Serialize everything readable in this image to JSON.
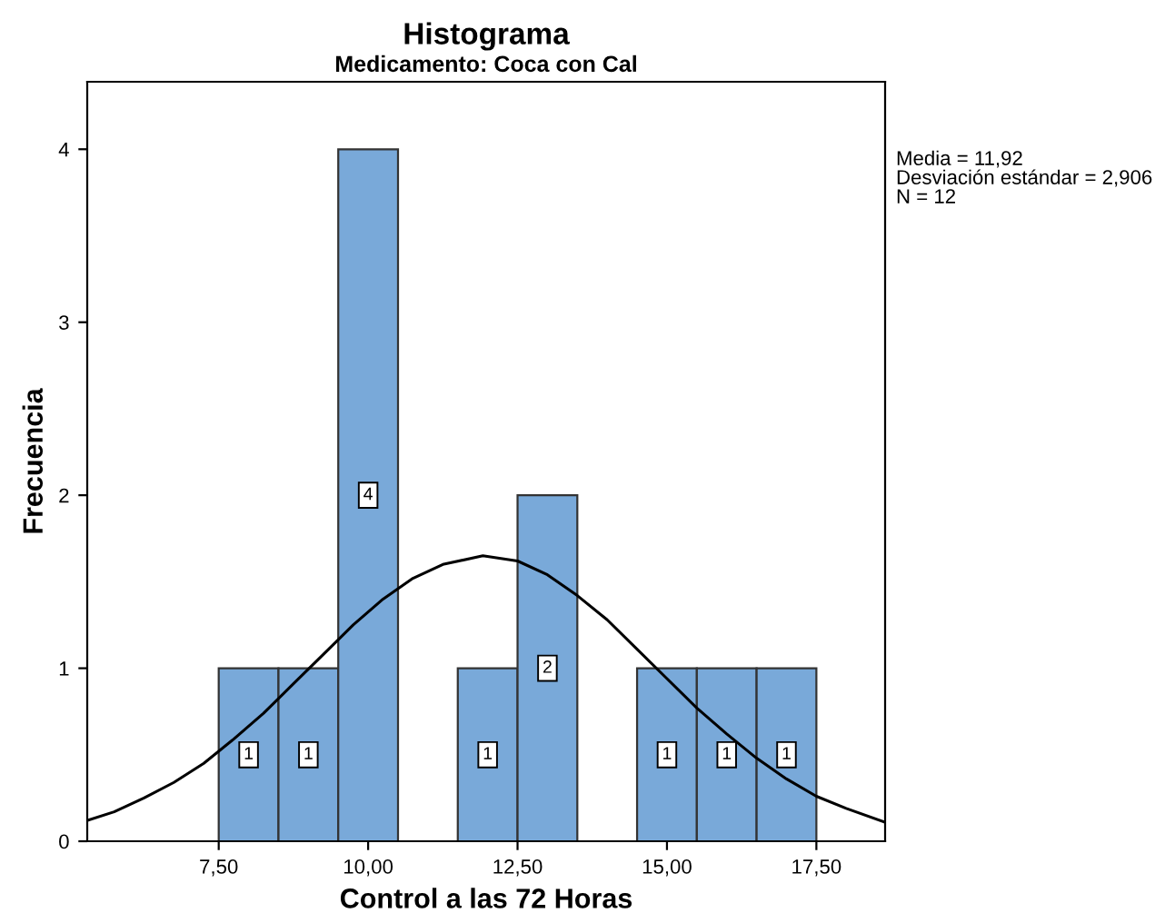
{
  "chart_data": {
    "type": "histogram",
    "title": "Histograma",
    "subtitle": "Medicamento: Coca con Cal",
    "xlabel": "Control a las 72 Horas",
    "ylabel": "Frecuencia",
    "bins": [
      7.5,
      8.5,
      9.5,
      10.5,
      11.5,
      12.5,
      13.5,
      14.5,
      15.5,
      16.5,
      17.5
    ],
    "values": [
      1,
      1,
      4,
      0,
      1,
      2,
      0,
      1,
      1,
      1
    ],
    "value_labels": [
      "1",
      "1",
      "4",
      null,
      "1",
      "2",
      null,
      "1",
      "1",
      "1"
    ],
    "color": "#79a9d9",
    "series": [
      {
        "type": "line",
        "color": "#000000",
        "x": [
          5.3,
          5.75,
          6.25,
          6.75,
          7.25,
          7.75,
          8.25,
          8.75,
          9.25,
          9.75,
          10.25,
          10.75,
          11.25,
          11.92,
          12.5,
          13,
          13.5,
          14,
          14.5,
          15,
          15.5,
          16,
          16.5,
          17,
          17.5,
          18,
          18.65
        ],
        "values": [
          0.12,
          0.17,
          0.25,
          0.34,
          0.45,
          0.59,
          0.74,
          0.91,
          1.08,
          1.25,
          1.4,
          1.52,
          1.6,
          1.65,
          1.62,
          1.54,
          1.42,
          1.28,
          1.11,
          0.94,
          0.77,
          0.62,
          0.48,
          0.36,
          0.26,
          0.19,
          0.11
        ]
      }
    ],
    "xlim": [
      5.3,
      18.65
    ],
    "ylim": [
      0,
      4.39
    ],
    "xticks": [
      {
        "value": 7.5,
        "label": "7,50"
      },
      {
        "value": 10,
        "label": "10,00"
      },
      {
        "value": 12.5,
        "label": "12,50"
      },
      {
        "value": 15,
        "label": "15,00"
      },
      {
        "value": 17.5,
        "label": "17,50"
      }
    ],
    "yticks": [
      0,
      1,
      2,
      3,
      4
    ],
    "grid": false,
    "legend": false,
    "annotations": [
      "Media = 11,92",
      "Desviación estándar = 2,906",
      "N = 12"
    ]
  }
}
